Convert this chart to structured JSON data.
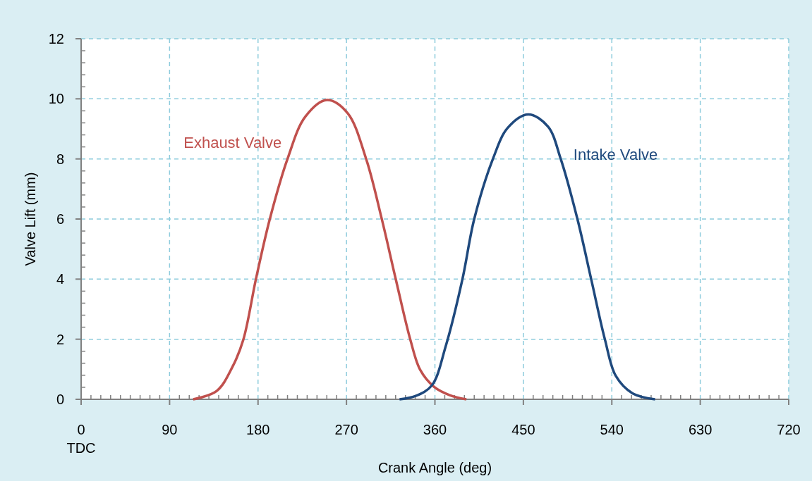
{
  "chart_data": {
    "type": "line",
    "xlabel": "Crank Angle (deg)",
    "ylabel": "Valve Lift (mm)",
    "xlim": [
      0,
      720
    ],
    "xticks": [
      {
        "value": 0,
        "label": "0\nTDC"
      },
      90,
      180,
      270,
      360,
      450,
      540,
      630,
      720
    ],
    "ylim": [
      0,
      12
    ],
    "yticks": [
      0,
      2,
      4,
      6,
      8,
      10,
      12
    ],
    "grid": true,
    "marker": "none",
    "line_style": "solid",
    "series": [
      {
        "name": "Exhaust Valve",
        "color": "#c0504d",
        "x": [
          114,
          138,
          154,
          165,
          178,
          192,
          210,
          228,
          250,
          271,
          290,
          306,
          320,
          335,
          345,
          359,
          375,
          392
        ],
        "values": [
          0,
          0.28,
          1.08,
          1.98,
          4.02,
          6.0,
          8.0,
          9.4,
          9.96,
          9.53,
          8.0,
          5.99,
          4.02,
          1.98,
          0.98,
          0.42,
          0.14,
          0
        ]
      },
      {
        "name": "Intake Valve",
        "color": "#1f497d",
        "x": [
          324,
          341,
          357,
          371,
          388,
          400,
          419,
          434,
          455,
          475,
          488,
          505,
          519,
          533,
          544,
          561,
          584
        ],
        "values": [
          0,
          0.12,
          0.47,
          1.77,
          4.0,
          6.0,
          8.0,
          9.03,
          9.48,
          9.08,
          8.0,
          6.0,
          4.0,
          1.99,
          0.78,
          0.2,
          0
        ]
      }
    ]
  }
}
